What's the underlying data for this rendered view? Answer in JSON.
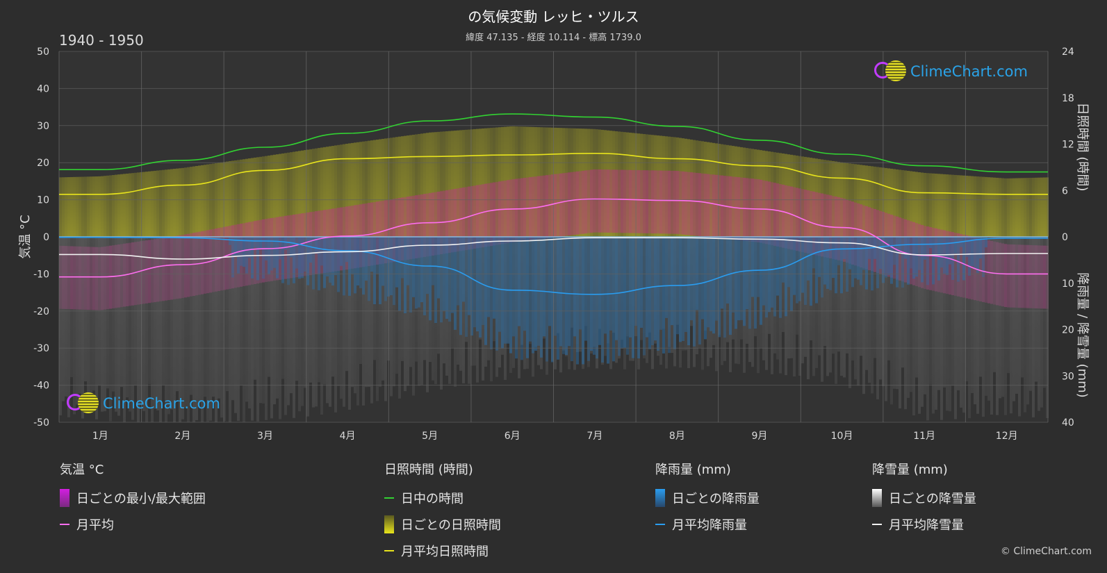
{
  "header": {
    "title": "の気候変動 レッヒ・ツルス",
    "subtitle": "緯度 47.135 - 経度 10.114 - 標高 1739.0",
    "period": "1940 - 1950"
  },
  "axes": {
    "left_label": "気温 °C",
    "right_top_label": "日照時間 (時間)",
    "right_bottom_label": "降雨量 / 降雪量 (mm)",
    "left_ticks": [
      "50",
      "40",
      "30",
      "20",
      "10",
      "0",
      "-10",
      "-20",
      "-30",
      "-40",
      "-50"
    ],
    "right_top_ticks": [
      "24",
      "18",
      "12",
      "6",
      "0"
    ],
    "right_bottom_ticks": [
      "10",
      "20",
      "30",
      "40"
    ]
  },
  "chart_data": {
    "type": "line",
    "categories": [
      "1月",
      "2月",
      "3月",
      "4月",
      "5月",
      "6月",
      "7月",
      "8月",
      "9月",
      "10月",
      "11月",
      "12月"
    ],
    "temperature_ylim": [
      -50,
      50
    ],
    "sunshine_ylim": [
      0,
      24
    ],
    "precipitation_ylim": [
      0,
      40
    ],
    "series": [
      {
        "name": "日中の時間",
        "axis": "sunshine",
        "values": [
          8.7,
          9.9,
          11.6,
          13.4,
          15.0,
          15.9,
          15.5,
          14.3,
          12.5,
          10.7,
          9.2,
          8.4
        ]
      },
      {
        "name": "月平均日照時間",
        "axis": "sunshine",
        "values": [
          5.5,
          6.7,
          8.6,
          10.1,
          10.4,
          10.6,
          10.8,
          10.1,
          9.2,
          7.6,
          5.7,
          5.5
        ]
      },
      {
        "name": "月平均",
        "axis": "temperature",
        "values": [
          -10.8,
          -7.5,
          -3.2,
          0.2,
          3.8,
          7.5,
          10.2,
          9.8,
          7.5,
          2.5,
          -5.0,
          -10.0
        ]
      },
      {
        "name": "月平均降雨量",
        "axis": "precipitation",
        "values": [
          0.1,
          0.2,
          0.9,
          3.0,
          6.3,
          11.5,
          12.4,
          10.5,
          7.2,
          2.6,
          1.6,
          0.3
        ]
      },
      {
        "name": "月平均降雪量",
        "axis": "precipitation",
        "values": [
          3.8,
          4.8,
          4.0,
          3.2,
          1.8,
          0.9,
          0.2,
          0.2,
          0.5,
          1.3,
          3.9,
          3.6
        ]
      }
    ]
  },
  "legend": {
    "groups": [
      {
        "title": "気温 °C",
        "items": [
          {
            "label": "日ごとの最小/最大範囲",
            "swatch": "box",
            "color": "#d21ee0"
          },
          {
            "label": "月平均",
            "swatch": "line",
            "color": "#ff6ef0"
          }
        ]
      },
      {
        "title": "日照時間 (時間)",
        "items": [
          {
            "label": "日中の時間",
            "swatch": "line",
            "color": "#32d232"
          },
          {
            "label": "日ごとの日照時間",
            "swatch": "box",
            "color": "#d8d42a"
          },
          {
            "label": "月平均日照時間",
            "swatch": "line",
            "color": "#e8e41c"
          }
        ]
      },
      {
        "title": "降雨量 (mm)",
        "items": [
          {
            "label": "日ごとの降雨量",
            "swatch": "box",
            "color": "#2b86c8"
          },
          {
            "label": "月平均降雨量",
            "swatch": "line",
            "color": "#2a9df0"
          }
        ]
      },
      {
        "title": "降雪量 (mm)",
        "items": [
          {
            "label": "日ごとの降雪量",
            "swatch": "box",
            "color": "#d0d0d0"
          },
          {
            "label": "月平均降雪量",
            "swatch": "line",
            "color": "#f2f2f2"
          }
        ]
      }
    ]
  },
  "branding": {
    "logo_text": "ClimeChart.com",
    "copyright": "© ClimeChart.com"
  },
  "colors": {
    "background": "#2d2d2d",
    "grid": "#5a5a5a",
    "daylight": "#32d232",
    "sunshine": "#e8e41c",
    "temperature": "#ff6ef0",
    "rain": "#2a9df0",
    "snow": "#f2f2f2"
  }
}
